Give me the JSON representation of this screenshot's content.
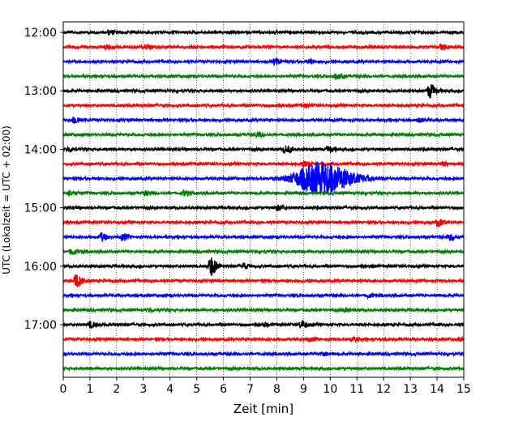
{
  "chart_data": {
    "type": "line",
    "title": "",
    "xlabel": "Zeit  [min]",
    "ylabel": "UTC (Lokalzeit = UTC + 02:00)",
    "xlim": [
      0,
      15
    ],
    "x_ticks": [
      "0",
      "1",
      "2",
      "3",
      "4",
      "5",
      "6",
      "7",
      "8",
      "9",
      "10",
      "11",
      "12",
      "13",
      "14",
      "15"
    ],
    "y_ticks": [
      "12:00",
      "13:00",
      "14:00",
      "15:00",
      "16:00",
      "17:00"
    ],
    "grid_x": true,
    "trace_interval_minutes": 15,
    "start_time": "12:00",
    "trace_colors": [
      "#000000",
      "#ff0000",
      "#0000ff",
      "#008000"
    ],
    "traces": [
      {
        "start": "12:00",
        "color": "#000000",
        "events": [
          {
            "t": 1.7,
            "amp": 0.25
          }
        ]
      },
      {
        "start": "12:15",
        "color": "#ff0000",
        "events": [
          {
            "t": 1.6,
            "amp": 0.25
          },
          {
            "t": 3.1,
            "amp": 0.2
          },
          {
            "t": 14.1,
            "amp": 0.35
          }
        ]
      },
      {
        "start": "12:30",
        "color": "#0000ff",
        "events": [
          {
            "t": 7.9,
            "amp": 0.4
          },
          {
            "t": 9.2,
            "amp": 0.2
          }
        ]
      },
      {
        "start": "12:45",
        "color": "#008000",
        "events": [
          {
            "t": 10.2,
            "amp": 0.3
          }
        ]
      },
      {
        "start": "13:00",
        "color": "#000000",
        "events": [
          {
            "t": 13.7,
            "amp": 0.9
          }
        ]
      },
      {
        "start": "13:15",
        "color": "#ff0000",
        "events": [
          {
            "t": 9.0,
            "amp": 0.2
          }
        ]
      },
      {
        "start": "13:30",
        "color": "#0000ff",
        "events": [
          {
            "t": 0.4,
            "amp": 0.5
          },
          {
            "t": 13.3,
            "amp": 0.2
          }
        ]
      },
      {
        "start": "13:45",
        "color": "#008000",
        "events": [
          {
            "t": 7.2,
            "amp": 0.3
          }
        ]
      },
      {
        "start": "14:00",
        "color": "#000000",
        "events": [
          {
            "t": 0.2,
            "amp": 0.3
          },
          {
            "t": 8.3,
            "amp": 0.45
          },
          {
            "t": 9.9,
            "amp": 0.35
          }
        ]
      },
      {
        "start": "14:15",
        "color": "#ff0000",
        "events": [
          {
            "t": 9.0,
            "amp": 0.25
          },
          {
            "t": 14.2,
            "amp": 0.2
          }
        ]
      },
      {
        "start": "14:30",
        "color": "#0000ff",
        "events": [
          {
            "t": 9.6,
            "amp": 2.2,
            "wide": true
          }
        ]
      },
      {
        "start": "14:45",
        "color": "#008000",
        "events": [
          {
            "t": 0.2,
            "amp": 0.3
          },
          {
            "t": 3.1,
            "amp": 0.25
          },
          {
            "t": 4.5,
            "amp": 0.35
          }
        ]
      },
      {
        "start": "15:00",
        "color": "#000000",
        "events": [
          {
            "t": 8.0,
            "amp": 0.3
          }
        ]
      },
      {
        "start": "15:15",
        "color": "#ff0000",
        "events": [
          {
            "t": 14.0,
            "amp": 0.45
          }
        ]
      },
      {
        "start": "15:30",
        "color": "#0000ff",
        "events": [
          {
            "t": 1.4,
            "amp": 0.5
          },
          {
            "t": 2.2,
            "amp": 0.4
          },
          {
            "t": 14.5,
            "amp": 0.4
          }
        ]
      },
      {
        "start": "15:45",
        "color": "#008000",
        "events": [
          {
            "t": 0.3,
            "amp": 0.4
          }
        ]
      },
      {
        "start": "16:00",
        "color": "#000000",
        "events": [
          {
            "t": 5.5,
            "amp": 1.3
          },
          {
            "t": 6.7,
            "amp": 0.35
          }
        ]
      },
      {
        "start": "16:15",
        "color": "#ff0000",
        "events": [
          {
            "t": 0.45,
            "amp": 0.9
          }
        ]
      },
      {
        "start": "16:30",
        "color": "#0000ff",
        "events": [
          {
            "t": 11.4,
            "amp": 0.25
          }
        ]
      },
      {
        "start": "16:45",
        "color": "#008000",
        "events": [
          {
            "t": 3.2,
            "amp": 0.2
          },
          {
            "t": 10.5,
            "amp": 0.2
          }
        ]
      },
      {
        "start": "17:00",
        "color": "#000000",
        "events": [
          {
            "t": 1.0,
            "amp": 0.35
          },
          {
            "t": 7.5,
            "amp": 0.25
          },
          {
            "t": 8.9,
            "amp": 0.5
          }
        ]
      },
      {
        "start": "17:15",
        "color": "#ff0000",
        "events": [
          {
            "t": 9.2,
            "amp": 0.2
          },
          {
            "t": 10.8,
            "amp": 0.25
          },
          {
            "t": 14.8,
            "amp": 0.2
          }
        ]
      },
      {
        "start": "17:30",
        "color": "#0000ff",
        "events": [
          {
            "t": 9.7,
            "amp": 0.25
          }
        ]
      },
      {
        "start": "17:45",
        "color": "#008000",
        "events": []
      }
    ]
  }
}
